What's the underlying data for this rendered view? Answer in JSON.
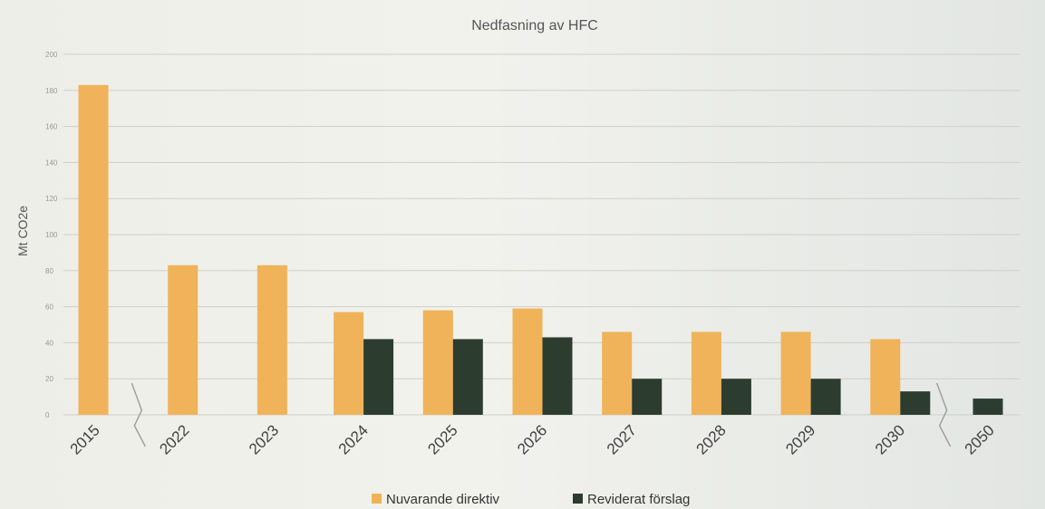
{
  "chart_data": {
    "type": "bar",
    "title": "Nedfasning av HFC",
    "ylabel": "Mt CO2e",
    "ylim": [
      0,
      200
    ],
    "yticks": [
      0,
      20,
      40,
      60,
      80,
      100,
      120,
      140,
      160,
      180,
      200
    ],
    "categories": [
      "2015",
      "2022",
      "2023",
      "2024",
      "2025",
      "2026",
      "2027",
      "2028",
      "2029",
      "2030",
      "2050"
    ],
    "series": [
      {
        "name": "Nuvarande direktiv",
        "color": "#f0b35a",
        "values": [
          183,
          83,
          83,
          57,
          58,
          59,
          46,
          46,
          46,
          42,
          null
        ]
      },
      {
        "name": "Reviderat förslag",
        "color": "#2c3d30",
        "values": [
          null,
          null,
          null,
          42,
          42,
          43,
          20,
          20,
          20,
          13,
          9
        ]
      }
    ],
    "axis_breaks": [
      "2015-2022",
      "2030-2050"
    ],
    "grid": true,
    "legend": "bottom"
  }
}
